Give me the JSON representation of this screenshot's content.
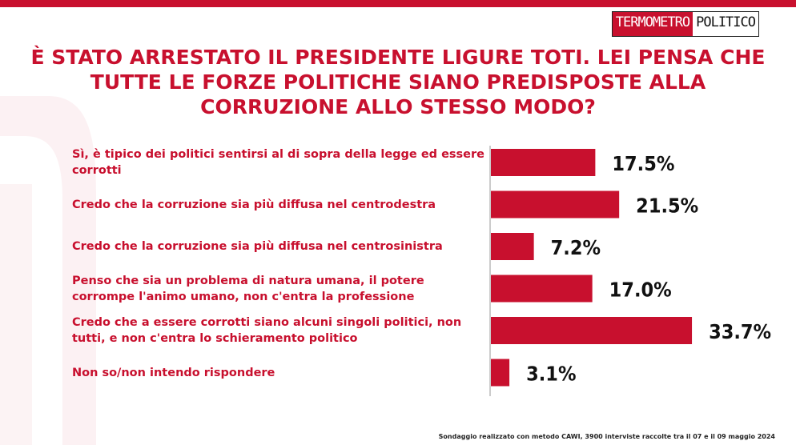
{
  "brand": {
    "logo_part1": "TERMOMETRO",
    "logo_part2": "POLITICO",
    "accent": "#c8102e"
  },
  "title": "È STATO ARRESTATO IL PRESIDENTE LIGURE TOTI. LEI PENSA CHE TUTTE LE FORZE POLITICHE SIANO PREDISPOSTE ALLA CORRUZIONE ALLO STESSO MODO?",
  "chart_data": {
    "type": "bar",
    "orientation": "horizontal",
    "categories": [
      "Sì, è tipico dei politici sentirsi al di sopra della legge ed essere corrotti",
      "Credo che la corruzione sia più diffusa nel centrodestra",
      "Credo che la corruzione sia più diffusa nel centrosinistra",
      "Penso che sia un problema di natura umana, il potere corrompe l'animo umano, non c'entra la professione",
      "Credo che a essere corrotti siano alcuni singoli politici, non tutti, e non c'entra lo schieramento politico",
      "Non so/non intendo rispondere"
    ],
    "values": [
      17.5,
      21.5,
      7.2,
      17.0,
      33.7,
      3.1
    ],
    "value_labels": [
      "17.5%",
      "21.5%",
      "7.2%",
      "17.0%",
      "33.7%",
      "3.1%"
    ],
    "bar_color": "#c8102e",
    "grid": false,
    "legend": "none"
  },
  "footer": "Sondaggio realizzato con metodo CAWI, 3900 interviste raccolte tra il 07 e il 09 maggio 2024"
}
